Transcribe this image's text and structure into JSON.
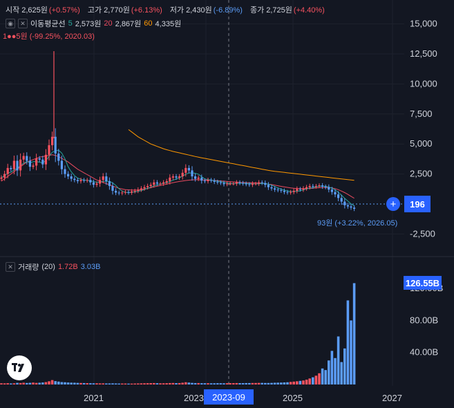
{
  "legend": {
    "open_label": "시작",
    "open_value": "2,625원",
    "open_change": "(+0.57%)",
    "high_label": "고가",
    "high_value": "2,770원",
    "high_change": "(+6.13%)",
    "low_label": "저가",
    "low_value": "2,430원",
    "low_change": "(-6.89%)",
    "close_label": "종가",
    "close_value": "2,725원",
    "close_change": "(+4.40%)"
  },
  "ma": {
    "label": "이동평균선",
    "p1": "5",
    "v1": "2,573원",
    "p2": "20",
    "v2": "2,867원",
    "p3": "60",
    "v3": "4,335원"
  },
  "annotations": {
    "high_note": "1●●5원 (-99.25%, 2020.03)",
    "low_note": "93원 (+3.22%, 2026.05)"
  },
  "volume": {
    "label": "거래량",
    "period": "(20)",
    "v1": "1.72B",
    "v2": "3.03B"
  },
  "badges": {
    "price": "196",
    "volume": "126.55B",
    "crosshair_date": "2023-09"
  },
  "price_axis": {
    "ticks": [
      "15,000",
      "12,500",
      "10,000",
      "7,500",
      "5,000",
      "2,500",
      "-2,500"
    ]
  },
  "volume_axis": {
    "ticks": [
      "120.00B",
      "80.00B",
      "40.00B"
    ]
  },
  "time_axis": {
    "ticks": [
      "2021",
      "2023",
      "2025",
      "2027"
    ]
  },
  "colors": {
    "up": "#f7525f",
    "down": "#5b9cf6",
    "bg": "#131722",
    "ma5": "#26a69a",
    "ma20": "#e84a5f",
    "ma60": "#ff9800",
    "accent": "#2962ff"
  },
  "chart_data": {
    "type": "candlestick",
    "x_range": [
      "2019-09",
      "2027"
    ],
    "ylim": [
      -3500,
      16000
    ],
    "close": [
      2200,
      2500,
      3000,
      2900,
      3600,
      2800,
      3700,
      4000,
      3600,
      3100,
      3200,
      3800,
      3700,
      3300,
      4100,
      4900,
      5600,
      4200,
      3600,
      2900,
      2500,
      2300,
      2100,
      2000,
      1900,
      2000,
      1950,
      2000,
      1800,
      1600,
      1700,
      2000,
      2300,
      1900,
      1500,
      1100,
      950,
      900,
      950,
      1000,
      950,
      1050,
      1100,
      1200,
      1300,
      1400,
      1500,
      1600,
      1800,
      1700,
      1700,
      1800,
      1900,
      2200,
      2300,
      2200,
      2300,
      2600,
      3000,
      2800,
      2300,
      2100,
      2200,
      1950,
      1900,
      2000,
      1950,
      1850,
      1800,
      1750,
      1650,
      1700,
      1700,
      1700,
      1800,
      1750,
      1700,
      1650,
      1600,
      1700,
      1700,
      1800,
      1750,
      1600,
      1400,
      1300,
      1200,
      1150,
      1100,
      1000,
      950,
      1000,
      1100,
      1250,
      1200,
      1300,
      1400,
      1500,
      1450,
      1500,
      1550,
      1450,
      1400,
      1200,
      1000,
      800,
      500,
      200,
      -100,
      -200,
      -300,
      -400
    ],
    "ma20": [
      1900,
      2100,
      2300,
      2500,
      2700,
      2900,
      3100,
      3300,
      3500,
      3600,
      3700,
      3800,
      3900,
      3950,
      4000,
      4050,
      4100,
      4050,
      3950,
      3800,
      3650,
      3500,
      3300,
      3100,
      2900,
      2750,
      2600,
      2450,
      2300,
      2150,
      2000,
      1900,
      1800,
      1700,
      1600,
      1500,
      1400,
      1300,
      1250,
      1200,
      1180,
      1160,
      1160,
      1170,
      1200,
      1240,
      1300,
      1360,
      1420,
      1480,
      1540,
      1600,
      1660,
      1720,
      1780,
      1830,
      1880,
      1920,
      1960,
      1990,
      2010,
      2020,
      2020,
      2010,
      2000,
      1990,
      1980,
      1960,
      1940,
      1920,
      1900,
      1880,
      1860,
      1840,
      1820,
      1800,
      1790,
      1780,
      1770,
      1760,
      1750,
      1740,
      1730,
      1700,
      1660,
      1620,
      1570,
      1520,
      1470,
      1420,
      1380,
      1340,
      1310,
      1290,
      1280,
      1280,
      1290,
      1300,
      1320,
      1340,
      1360,
      1370,
      1380,
      1370,
      1340,
      1280,
      1190,
      1080,
      950,
      800,
      640,
      480
    ],
    "ma60_from": 40,
    "ma60": [
      6200,
      6000,
      5800,
      5600,
      5450,
      5300,
      5150,
      5000,
      4900,
      4800,
      4700,
      4600,
      4520,
      4450,
      4380,
      4320,
      4260,
      4200,
      4140,
      4080,
      4020,
      3960,
      3900,
      3850,
      3800,
      3750,
      3700,
      3650,
      3600,
      3550,
      3500,
      3450,
      3400,
      3350,
      3300,
      3250,
      3200,
      3150,
      3100,
      3050,
      3000,
      2950,
      2900,
      2850,
      2800,
      2760,
      2720,
      2690,
      2660,
      2630,
      2600,
      2570,
      2540,
      2510,
      2480,
      2450,
      2420,
      2390,
      2360,
      2330,
      2300,
      2270,
      2240,
      2210,
      2180,
      2150,
      2120,
      2090,
      2060,
      2030,
      2000,
      1970
    ],
    "volume": [
      1.5,
      1.4,
      1.6,
      1.3,
      1.5,
      2.0,
      1.8,
      2.2,
      1.9,
      2.1,
      2.4,
      2.0,
      2.2,
      2.5,
      3.0,
      4.0,
      5.5,
      4.2,
      3.6,
      3.0,
      2.8,
      2.5,
      2.3,
      2.2,
      2.0,
      1.9,
      1.8,
      1.7,
      1.6,
      1.5,
      1.5,
      1.4,
      1.4,
      1.3,
      1.3,
      1.4,
      1.3,
      1.2,
      1.2,
      1.2,
      1.1,
      1.1,
      1.2,
      1.3,
      1.4,
      1.5,
      1.6,
      1.7,
      1.8,
      1.6,
      1.5,
      1.5,
      1.6,
      1.8,
      1.9,
      1.7,
      1.8,
      2.2,
      2.8,
      2.4,
      2.0,
      1.8,
      1.8,
      1.6,
      1.6,
      1.6,
      1.5,
      1.5,
      1.6,
      1.6,
      1.5,
      1.6,
      1.7,
      1.7,
      1.8,
      1.7,
      1.7,
      1.8,
      1.8,
      1.9,
      1.9,
      2.0,
      2.0,
      1.9,
      1.9,
      2.0,
      2.2,
      2.3,
      2.4,
      2.6,
      2.8,
      3.2,
      3.6,
      4.0,
      4.5,
      5.0,
      6.0,
      7.5,
      9.0,
      11.0,
      14.0,
      20.0,
      18.0,
      30.0,
      42.0,
      33.0,
      60.0,
      28.0,
      45.0,
      105.0,
      80.0,
      126.55
    ]
  }
}
